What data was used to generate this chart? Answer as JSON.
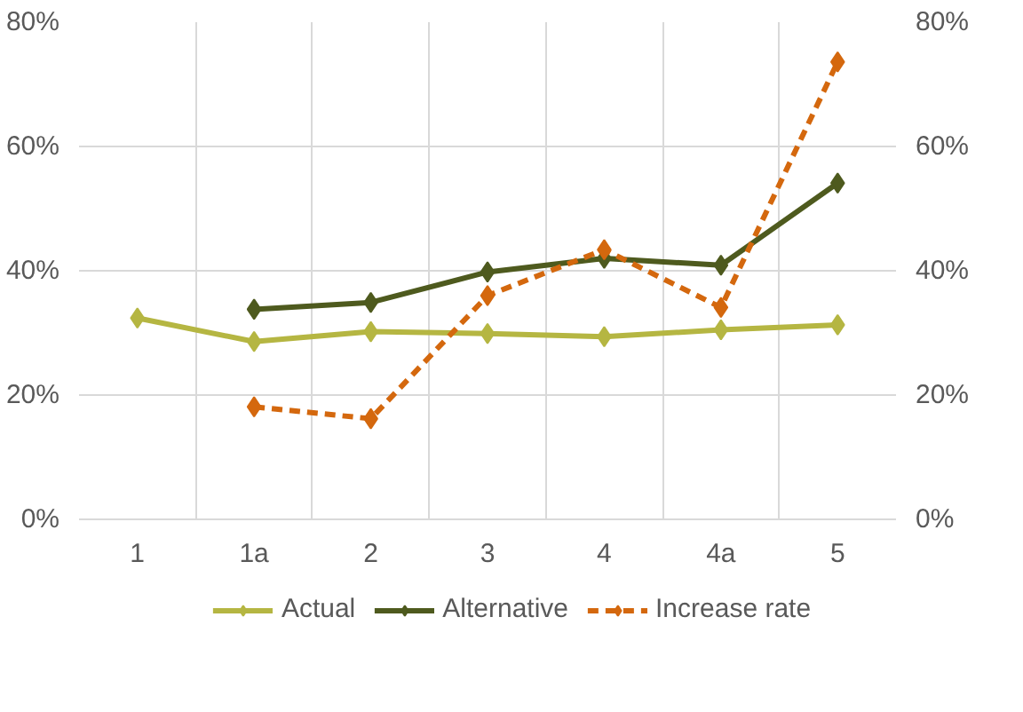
{
  "chart_data": {
    "type": "line",
    "categories": [
      "1",
      "1a",
      "2",
      "3",
      "4",
      "4a",
      "5"
    ],
    "series": [
      {
        "name": "Actual",
        "color": "#b5b642",
        "values": [
          32.4,
          28.6,
          30.2,
          29.9,
          29.4,
          30.5,
          31.3
        ],
        "line_style": "solid"
      },
      {
        "name": "Alternative",
        "color": "#4e5a1e",
        "values": [
          null,
          33.8,
          34.9,
          39.8,
          42.0,
          40.9,
          54.1
        ],
        "line_style": "solid"
      },
      {
        "name": "Increase rate",
        "color": "#d4680e",
        "values": [
          null,
          18.1,
          16.2,
          36.0,
          43.4,
          34.1,
          73.6
        ],
        "line_style": "dashed"
      }
    ],
    "ylim": [
      0,
      80
    ],
    "yticks": [
      {
        "value": 0,
        "label": "0%"
      },
      {
        "value": 20,
        "label": "20%"
      },
      {
        "value": 40,
        "label": "40%"
      },
      {
        "value": 60,
        "label": "60%"
      },
      {
        "value": 80,
        "label": "80%"
      }
    ],
    "y2lim": [
      0,
      80
    ],
    "y2ticks": [
      {
        "value": 0,
        "label": "0%"
      },
      {
        "value": 20,
        "label": "20%"
      },
      {
        "value": 40,
        "label": "40%"
      },
      {
        "value": 60,
        "label": "60%"
      },
      {
        "value": 80,
        "label": "80%"
      }
    ],
    "grid": true,
    "legend": "bottom",
    "marker": "diamond"
  }
}
